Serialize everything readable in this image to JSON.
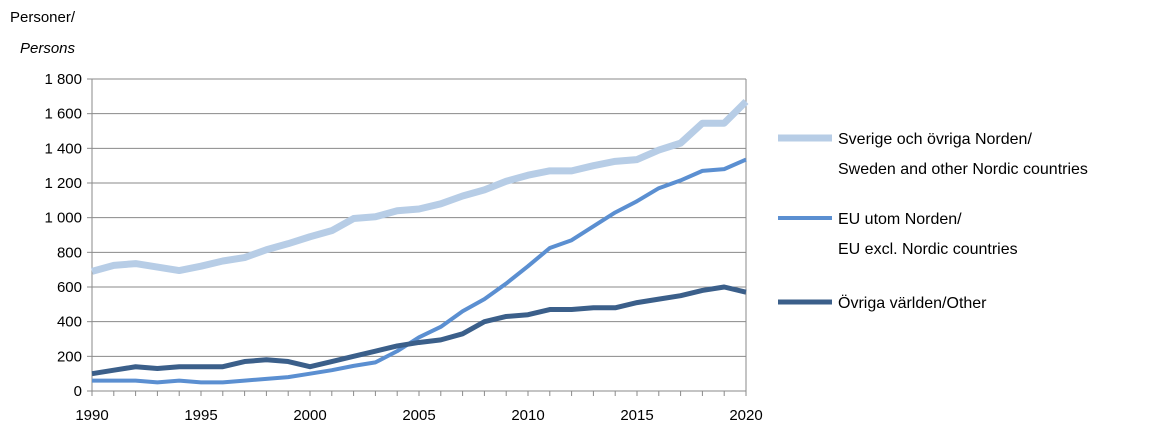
{
  "chart_data": {
    "type": "line",
    "ylabel": "Personer/",
    "ylabel_en": "Persons",
    "xlim": [
      1990,
      2020
    ],
    "ylim": [
      0,
      1800
    ],
    "x_ticks": [
      "1990",
      "1995",
      "2000",
      "2005",
      "2010",
      "2015",
      "2020"
    ],
    "y_ticks": [
      "0",
      "200",
      "400",
      "600",
      "800",
      "1 000",
      "1 200",
      "1 400",
      "1 600",
      "1 800"
    ],
    "grid": true,
    "legend_position": "right",
    "x": [
      1990,
      1991,
      1992,
      1993,
      1994,
      1995,
      1996,
      1997,
      1998,
      1999,
      2000,
      2001,
      2002,
      2003,
      2004,
      2005,
      2006,
      2007,
      2008,
      2009,
      2010,
      2011,
      2012,
      2013,
      2014,
      2015,
      2016,
      2017,
      2018,
      2019,
      2020
    ],
    "series": [
      {
        "name_line1": "Sverige och övriga Norden/",
        "name_line2": "Sweden and other Nordic countries",
        "color": "#b7cde6",
        "values": [
          690,
          725,
          735,
          715,
          695,
          720,
          750,
          770,
          815,
          850,
          890,
          925,
          995,
          1005,
          1040,
          1050,
          1080,
          1125,
          1160,
          1210,
          1245,
          1270,
          1270,
          1300,
          1325,
          1335,
          1390,
          1430,
          1545,
          1545,
          1670
        ]
      },
      {
        "name_line1": "EU utom Norden/",
        "name_line2": "EU excl. Nordic countries",
        "color": "#5b8fd1",
        "values": [
          60,
          60,
          60,
          50,
          60,
          50,
          50,
          60,
          70,
          80,
          100,
          120,
          145,
          165,
          230,
          310,
          370,
          460,
          530,
          620,
          720,
          825,
          870,
          950,
          1030,
          1095,
          1170,
          1215,
          1270,
          1280,
          1335
        ]
      },
      {
        "name_line1": "Övriga världen/Other",
        "name_line2": "",
        "color": "#3b5f8a",
        "values": [
          100,
          120,
          140,
          130,
          140,
          140,
          140,
          170,
          180,
          170,
          140,
          170,
          200,
          230,
          260,
          280,
          295,
          330,
          400,
          430,
          440,
          470,
          470,
          480,
          480,
          510,
          530,
          550,
          580,
          600,
          570
        ]
      }
    ]
  }
}
